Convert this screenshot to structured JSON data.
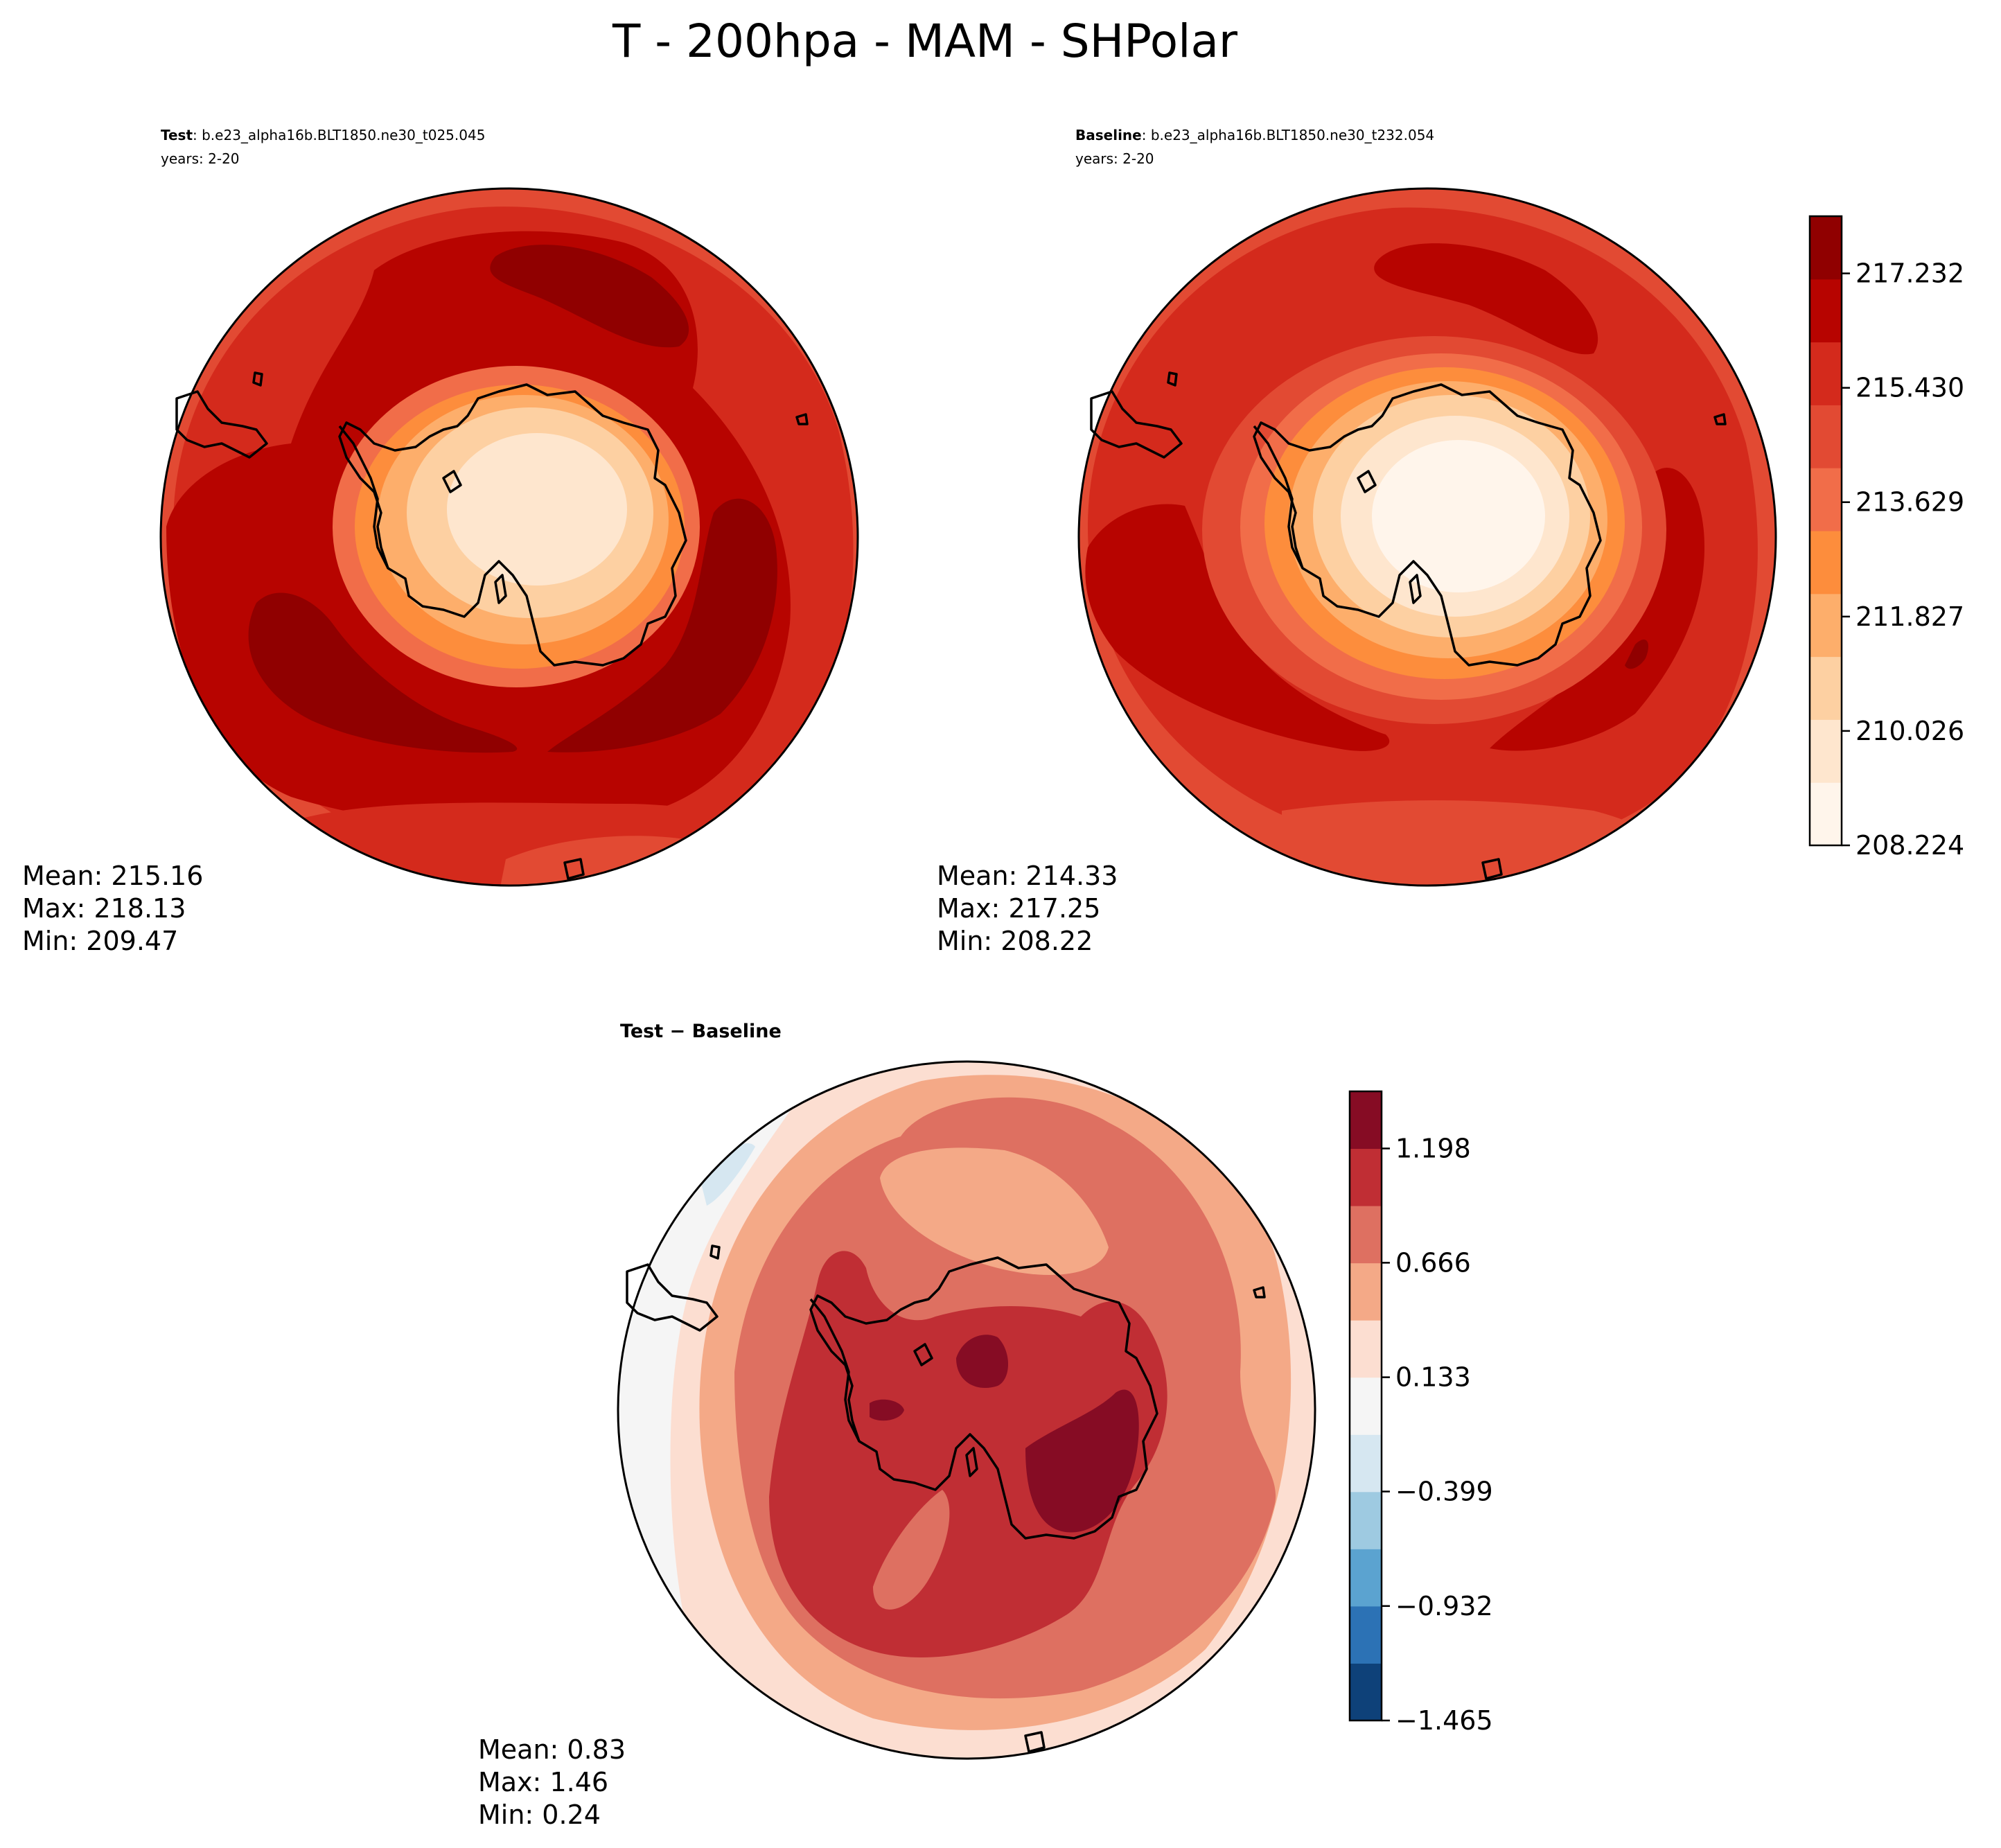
{
  "title": "T - 200hpa - MAM - SHPolar",
  "panels": {
    "test": {
      "label": "Test",
      "case": ": b.e23_alpha16b.BLT1850.ne30_t025.045",
      "years": "years: 2-20",
      "mean": "Mean: 215.16",
      "max": "Max: 218.13",
      "min": "Min: 209.47"
    },
    "baseline": {
      "label": "Baseline",
      "case": ": b.e23_alpha16b.BLT1850.ne30_t232.054",
      "years": "years: 2-20",
      "mean": "Mean: 214.33",
      "max": "Max: 217.25",
      "min": "Min: 208.22"
    },
    "diff": {
      "label_a": "Test",
      "label_b": "Baseline",
      "mean": "Mean:  0.83",
      "max": "Max:  1.46",
      "min": "Min:  0.24"
    }
  },
  "chart_data": [
    {
      "type": "heatmap",
      "name": "Test",
      "projection": "south-polar-stereographic",
      "variable": "T",
      "level": "200hpa",
      "season": "MAM",
      "mean": 215.16,
      "max": 218.13,
      "min": 209.47,
      "colorbar": "shared-absolute"
    },
    {
      "type": "heatmap",
      "name": "Baseline",
      "projection": "south-polar-stereographic",
      "variable": "T",
      "level": "200hpa",
      "season": "MAM",
      "mean": 214.33,
      "max": 217.25,
      "min": 208.22,
      "colorbar": "shared-absolute"
    },
    {
      "type": "heatmap",
      "name": "Test - Baseline",
      "projection": "south-polar-stereographic",
      "mean": 0.83,
      "max": 1.46,
      "min": 0.24,
      "colorbar": "difference"
    }
  ],
  "colorbars": {
    "absolute": {
      "range": [
        208.224,
        218.133
      ],
      "tick_values": [
        208.224,
        210.026,
        211.827,
        213.629,
        215.43,
        217.232
      ],
      "tick_labels": [
        "208.224",
        "210.026",
        "211.827",
        "213.629",
        "215.430",
        "217.232"
      ],
      "colors": [
        "#fff5eb",
        "#fee6ce",
        "#fdd0a2",
        "#fdae6b",
        "#fd8d3c",
        "#f16d49",
        "#e24a33",
        "#d42a1c",
        "#b70400",
        "#900000"
      ]
    },
    "difference": {
      "range": [
        -1.465,
        1.464
      ],
      "tick_values": [
        -1.465,
        -0.932,
        -0.399,
        0.133,
        0.666,
        1.198
      ],
      "tick_labels": [
        "−1.465",
        "−0.932",
        "−0.399",
        "0.133",
        "0.666",
        "1.198"
      ],
      "colors": [
        "#0e4179",
        "#2c72b5",
        "#5ba3d0",
        "#9ecae1",
        "#d6e7f1",
        "#f5f5f5",
        "#fcded1",
        "#f4a987",
        "#de7061",
        "#c02e34",
        "#860c24"
      ]
    }
  },
  "colors": {
    "coastline": "#000000",
    "background": "#ffffff"
  }
}
